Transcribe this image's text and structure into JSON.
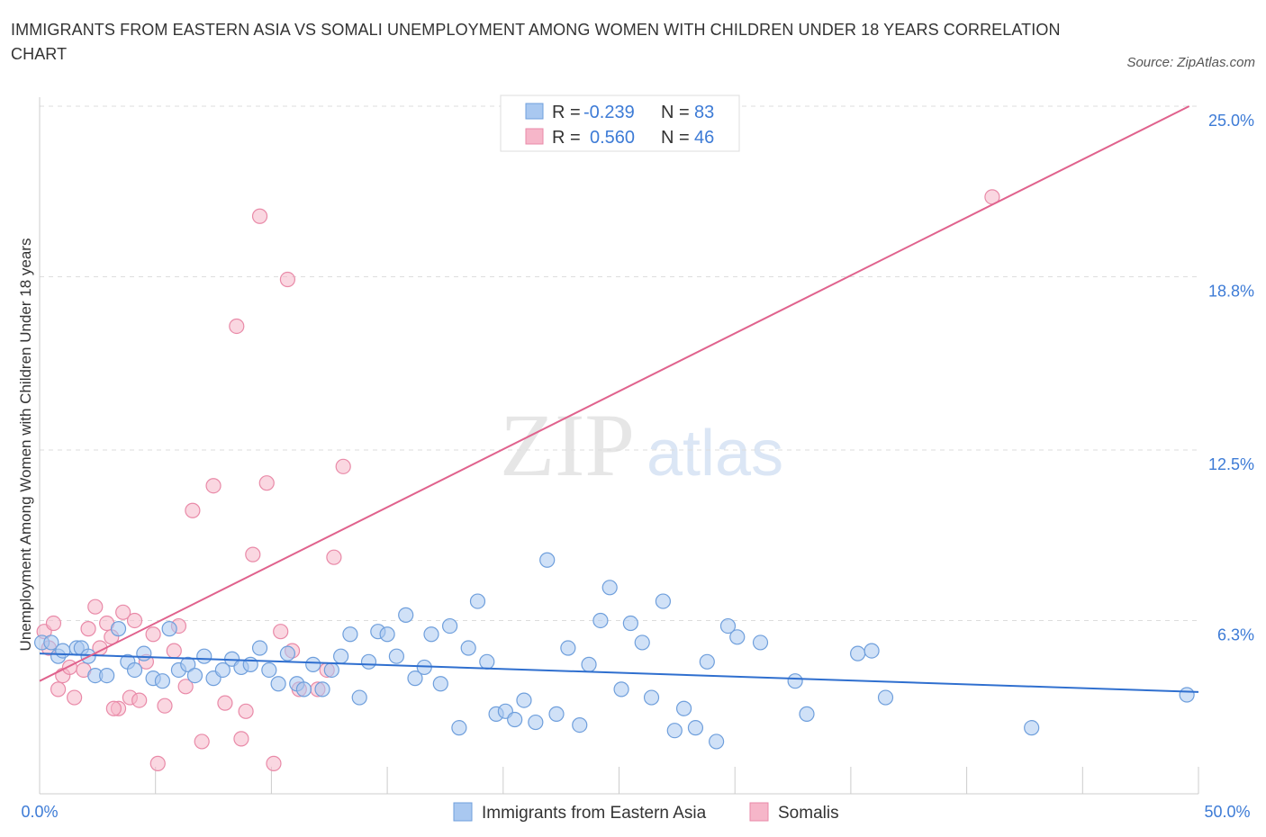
{
  "title": "IMMIGRANTS FROM EASTERN ASIA VS SOMALI UNEMPLOYMENT AMONG WOMEN WITH CHILDREN UNDER 18 YEARS CORRELATION CHART",
  "source": "Source: ZipAtlas.com",
  "watermark": {
    "zip": "ZIP",
    "atlas": "atlas"
  },
  "colors": {
    "blue_fill": "#a9c8f0",
    "blue_stroke": "#6f9fdc",
    "blue_line": "#2f6fcf",
    "pink_fill": "#f6b6c9",
    "pink_stroke": "#e98aa8",
    "pink_line": "#e0628d",
    "tick_blue": "#3d7bd6",
    "grid": "#dddddd"
  },
  "legend_top": [
    {
      "r_label": "R =",
      "r_value": "-0.239",
      "n_label": "N =",
      "n_value": "83"
    },
    {
      "r_label": "R =",
      "r_value": "0.560",
      "n_label": "N =",
      "n_value": "46"
    }
  ],
  "chart_data": {
    "type": "scatter",
    "ylabel": "Unemployment Among Women with Children Under 18 years",
    "xlim": [
      0,
      50
    ],
    "ylim": [
      0,
      25
    ],
    "x_tick_labels": [
      "0.0%",
      "50.0%"
    ],
    "y_ticks": [
      6.3,
      12.5,
      18.8,
      25.0
    ],
    "y_tick_labels": [
      "6.3%",
      "12.5%",
      "18.8%",
      "25.0%"
    ],
    "grid": "horizontal dashed",
    "legend": "bottom-center",
    "series": [
      {
        "name": "Immigrants from Eastern Asia",
        "r": -0.239,
        "n": 83,
        "trend": [
          [
            0,
            5.1
          ],
          [
            50,
            3.7
          ]
        ],
        "points": [
          [
            0.1,
            5.5
          ],
          [
            0.5,
            5.5
          ],
          [
            0.8,
            5.0
          ],
          [
            1.0,
            5.2
          ],
          [
            1.6,
            5.3
          ],
          [
            1.8,
            5.3
          ],
          [
            2.1,
            5.0
          ],
          [
            2.4,
            4.3
          ],
          [
            2.9,
            4.3
          ],
          [
            3.4,
            6.0
          ],
          [
            3.8,
            4.8
          ],
          [
            4.1,
            4.5
          ],
          [
            4.5,
            5.1
          ],
          [
            4.9,
            4.2
          ],
          [
            5.3,
            4.1
          ],
          [
            5.6,
            6.0
          ],
          [
            6.0,
            4.5
          ],
          [
            6.4,
            4.7
          ],
          [
            6.7,
            4.3
          ],
          [
            7.1,
            5.0
          ],
          [
            7.5,
            4.2
          ],
          [
            7.9,
            4.5
          ],
          [
            8.3,
            4.9
          ],
          [
            8.7,
            4.6
          ],
          [
            9.1,
            4.7
          ],
          [
            9.5,
            5.3
          ],
          [
            9.9,
            4.5
          ],
          [
            10.3,
            4.0
          ],
          [
            10.7,
            5.1
          ],
          [
            11.1,
            4.0
          ],
          [
            11.4,
            3.8
          ],
          [
            11.8,
            4.7
          ],
          [
            12.2,
            3.8
          ],
          [
            12.6,
            4.5
          ],
          [
            13.0,
            5.0
          ],
          [
            13.4,
            5.8
          ],
          [
            13.8,
            3.5
          ],
          [
            14.2,
            4.8
          ],
          [
            14.6,
            5.9
          ],
          [
            15.0,
            5.8
          ],
          [
            15.4,
            5.0
          ],
          [
            15.8,
            6.5
          ],
          [
            16.2,
            4.2
          ],
          [
            16.6,
            4.6
          ],
          [
            16.9,
            5.8
          ],
          [
            17.3,
            4.0
          ],
          [
            17.7,
            6.1
          ],
          [
            18.1,
            2.4
          ],
          [
            18.5,
            5.3
          ],
          [
            18.9,
            7.0
          ],
          [
            19.3,
            4.8
          ],
          [
            19.7,
            2.9
          ],
          [
            20.1,
            3.0
          ],
          [
            20.5,
            2.7
          ],
          [
            20.9,
            3.4
          ],
          [
            21.4,
            2.6
          ],
          [
            21.9,
            8.5
          ],
          [
            22.3,
            2.9
          ],
          [
            22.8,
            5.3
          ],
          [
            23.3,
            2.5
          ],
          [
            23.7,
            4.7
          ],
          [
            24.2,
            6.3
          ],
          [
            24.6,
            7.5
          ],
          [
            25.1,
            3.8
          ],
          [
            25.5,
            6.2
          ],
          [
            26.0,
            5.5
          ],
          [
            26.4,
            3.5
          ],
          [
            26.9,
            7.0
          ],
          [
            27.4,
            2.3
          ],
          [
            27.8,
            3.1
          ],
          [
            28.3,
            2.4
          ],
          [
            28.8,
            4.8
          ],
          [
            29.2,
            1.9
          ],
          [
            29.7,
            6.1
          ],
          [
            30.1,
            5.7
          ],
          [
            31.1,
            5.5
          ],
          [
            32.6,
            4.1
          ],
          [
            33.1,
            2.9
          ],
          [
            35.3,
            5.1
          ],
          [
            35.9,
            5.2
          ],
          [
            36.5,
            3.5
          ],
          [
            42.8,
            2.4
          ],
          [
            49.5,
            3.6
          ]
        ]
      },
      {
        "name": "Somalis",
        "r": 0.56,
        "n": 46,
        "trend": [
          [
            0,
            4.1
          ],
          [
            49.6,
            25.0
          ]
        ],
        "points": [
          [
            0.2,
            5.9
          ],
          [
            0.4,
            5.3
          ],
          [
            0.6,
            6.2
          ],
          [
            0.8,
            3.8
          ],
          [
            1.0,
            4.3
          ],
          [
            1.3,
            4.6
          ],
          [
            1.5,
            3.5
          ],
          [
            1.9,
            4.5
          ],
          [
            2.1,
            6.0
          ],
          [
            2.4,
            6.8
          ],
          [
            2.6,
            5.3
          ],
          [
            2.9,
            6.2
          ],
          [
            3.1,
            5.7
          ],
          [
            3.4,
            3.1
          ],
          [
            3.6,
            6.6
          ],
          [
            3.9,
            3.5
          ],
          [
            4.1,
            6.3
          ],
          [
            4.3,
            3.4
          ],
          [
            4.6,
            4.8
          ],
          [
            4.9,
            5.8
          ],
          [
            5.1,
            1.1
          ],
          [
            5.4,
            3.2
          ],
          [
            5.8,
            5.2
          ],
          [
            6.0,
            6.1
          ],
          [
            6.3,
            3.9
          ],
          [
            6.6,
            10.3
          ],
          [
            7.0,
            1.9
          ],
          [
            7.5,
            11.2
          ],
          [
            8.0,
            3.3
          ],
          [
            8.5,
            17.0
          ],
          [
            8.7,
            2.0
          ],
          [
            8.9,
            3.0
          ],
          [
            9.2,
            8.7
          ],
          [
            9.5,
            21.0
          ],
          [
            9.8,
            11.3
          ],
          [
            10.1,
            1.1
          ],
          [
            10.4,
            5.9
          ],
          [
            10.7,
            18.7
          ],
          [
            10.9,
            5.2
          ],
          [
            11.2,
            3.8
          ],
          [
            12.0,
            3.8
          ],
          [
            12.4,
            4.5
          ],
          [
            12.7,
            8.6
          ],
          [
            13.1,
            11.9
          ],
          [
            41.1,
            21.7
          ],
          [
            3.2,
            3.1
          ]
        ]
      }
    ]
  }
}
